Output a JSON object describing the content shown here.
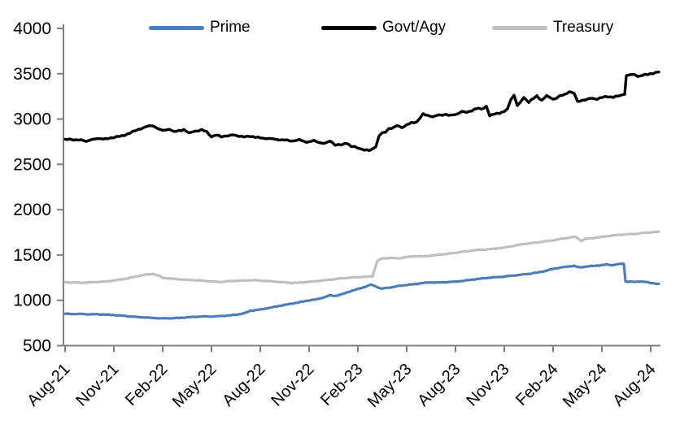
{
  "chart_data": {
    "type": "line",
    "title": "",
    "xlabel": "",
    "ylabel": "",
    "grid": false,
    "legend_position": "top",
    "axis_color": "#808080",
    "text_color": "#000000",
    "ylim": [
      500,
      4000
    ],
    "y_ticks": [
      500,
      1000,
      1500,
      2000,
      2500,
      3000,
      3500,
      4000
    ],
    "x_unit": "months since Aug-2021",
    "x_tick_months": [
      0,
      3,
      6,
      9,
      12,
      15,
      18,
      21,
      24,
      27,
      30,
      33,
      36
    ],
    "x_tick_labels": [
      "Aug-21",
      "Nov-21",
      "Feb-22",
      "May-22",
      "Aug-22",
      "Nov-22",
      "Feb-23",
      "May-23",
      "Aug-23",
      "Nov-23",
      "Feb-24",
      "May-24",
      "Aug-24"
    ],
    "series": [
      {
        "name": "Prime",
        "color": "#4a7ebb",
        "points": [
          [
            0,
            852
          ],
          [
            0.5,
            848
          ],
          [
            1,
            850
          ],
          [
            1.5,
            845
          ],
          [
            2,
            846
          ],
          [
            2.5,
            842
          ],
          [
            3,
            838
          ],
          [
            3.5,
            830
          ],
          [
            4,
            822
          ],
          [
            4.5,
            815
          ],
          [
            5,
            810
          ],
          [
            5.5,
            804
          ],
          [
            6,
            800
          ],
          [
            6.5,
            802
          ],
          [
            7,
            806
          ],
          [
            7.5,
            812
          ],
          [
            8,
            818
          ],
          [
            8.5,
            822
          ],
          [
            9,
            821
          ],
          [
            9.5,
            825
          ],
          [
            10,
            832
          ],
          [
            10.5,
            840
          ],
          [
            11,
            856
          ],
          [
            11.4,
            885
          ],
          [
            12,
            898
          ],
          [
            12.5,
            915
          ],
          [
            13,
            932
          ],
          [
            13.5,
            950
          ],
          [
            14,
            965
          ],
          [
            14.5,
            982
          ],
          [
            15,
            1000
          ],
          [
            15.5,
            1012
          ],
          [
            16,
            1038
          ],
          [
            16.3,
            1055
          ],
          [
            16.6,
            1048
          ],
          [
            17,
            1065
          ],
          [
            17.5,
            1098
          ],
          [
            18,
            1125
          ],
          [
            18.5,
            1152
          ],
          [
            18.8,
            1172
          ],
          [
            19.2,
            1148
          ],
          [
            19.4,
            1128
          ],
          [
            19.7,
            1135
          ],
          [
            20,
            1142
          ],
          [
            20.5,
            1158
          ],
          [
            21,
            1170
          ],
          [
            21.5,
            1178
          ],
          [
            22,
            1192
          ],
          [
            22.5,
            1198
          ],
          [
            23,
            1196
          ],
          [
            23.5,
            1202
          ],
          [
            24,
            1205
          ],
          [
            24.5,
            1215
          ],
          [
            25,
            1228
          ],
          [
            25.5,
            1238
          ],
          [
            26,
            1248
          ],
          [
            26.5,
            1255
          ],
          [
            27,
            1262
          ],
          [
            27.5,
            1272
          ],
          [
            28,
            1282
          ],
          [
            28.5,
            1292
          ],
          [
            29,
            1305
          ],
          [
            29.5,
            1322
          ],
          [
            30,
            1348
          ],
          [
            30.5,
            1362
          ],
          [
            31,
            1375
          ],
          [
            31.3,
            1380
          ],
          [
            31.6,
            1362
          ],
          [
            32,
            1372
          ],
          [
            32.5,
            1380
          ],
          [
            33,
            1388
          ],
          [
            33.3,
            1395
          ],
          [
            33.6,
            1388
          ],
          [
            34,
            1398
          ],
          [
            34.2,
            1405
          ],
          [
            34.35,
            1402
          ],
          [
            34.45,
            1208
          ],
          [
            34.8,
            1205
          ],
          [
            35,
            1202
          ],
          [
            35.3,
            1208
          ],
          [
            35.6,
            1205
          ],
          [
            36,
            1192
          ],
          [
            36.3,
            1185
          ],
          [
            36.5,
            1182
          ]
        ]
      },
      {
        "name": "Govt/Agy",
        "color": "#000000",
        "points": [
          [
            0,
            2770
          ],
          [
            0.3,
            2782
          ],
          [
            0.7,
            2765
          ],
          [
            1,
            2770
          ],
          [
            1.3,
            2758
          ],
          [
            1.7,
            2772
          ],
          [
            2,
            2788
          ],
          [
            2.5,
            2778
          ],
          [
            3,
            2800
          ],
          [
            3.5,
            2812
          ],
          [
            4,
            2848
          ],
          [
            4.5,
            2885
          ],
          [
            5,
            2915
          ],
          [
            5.4,
            2930
          ],
          [
            5.7,
            2895
          ],
          [
            6,
            2870
          ],
          [
            6.4,
            2892
          ],
          [
            6.7,
            2858
          ],
          [
            7,
            2872
          ],
          [
            7.3,
            2885
          ],
          [
            7.6,
            2845
          ],
          [
            8,
            2868
          ],
          [
            8.4,
            2878
          ],
          [
            8.7,
            2862
          ],
          [
            9,
            2805
          ],
          [
            9.3,
            2822
          ],
          [
            9.6,
            2808
          ],
          [
            10,
            2815
          ],
          [
            10.4,
            2825
          ],
          [
            10.7,
            2812
          ],
          [
            11,
            2802
          ],
          [
            11.4,
            2812
          ],
          [
            11.7,
            2798
          ],
          [
            12,
            2792
          ],
          [
            12.5,
            2785
          ],
          [
            13,
            2775
          ],
          [
            13.5,
            2768
          ],
          [
            14,
            2758
          ],
          [
            14.4,
            2772
          ],
          [
            14.7,
            2752
          ],
          [
            15,
            2748
          ],
          [
            15.3,
            2762
          ],
          [
            15.7,
            2738
          ],
          [
            16,
            2732
          ],
          [
            16.3,
            2758
          ],
          [
            16.6,
            2718
          ],
          [
            17,
            2712
          ],
          [
            17.3,
            2738
          ],
          [
            17.6,
            2698
          ],
          [
            18,
            2682
          ],
          [
            18.4,
            2660
          ],
          [
            18.7,
            2652
          ],
          [
            18.9,
            2668
          ],
          [
            19.1,
            2700
          ],
          [
            19.3,
            2812
          ],
          [
            19.5,
            2845
          ],
          [
            19.7,
            2858
          ],
          [
            19.9,
            2895
          ],
          [
            20.2,
            2905
          ],
          [
            20.4,
            2928
          ],
          [
            20.7,
            2908
          ],
          [
            21,
            2935
          ],
          [
            21.3,
            2958
          ],
          [
            21.6,
            2968
          ],
          [
            22,
            3052
          ],
          [
            22.3,
            3040
          ],
          [
            22.6,
            3028
          ],
          [
            23,
            3042
          ],
          [
            23.4,
            3052
          ],
          [
            23.7,
            3038
          ],
          [
            24,
            3052
          ],
          [
            24.4,
            3082
          ],
          [
            24.7,
            3072
          ],
          [
            25,
            3095
          ],
          [
            25.3,
            3118
          ],
          [
            25.6,
            3108
          ],
          [
            25.9,
            3142
          ],
          [
            26.1,
            3035
          ],
          [
            26.4,
            3055
          ],
          [
            26.7,
            3068
          ],
          [
            27,
            3082
          ],
          [
            27.2,
            3108
          ],
          [
            27.4,
            3218
          ],
          [
            27.6,
            3262
          ],
          [
            27.8,
            3152
          ],
          [
            28,
            3182
          ],
          [
            28.2,
            3238
          ],
          [
            28.5,
            3188
          ],
          [
            28.8,
            3228
          ],
          [
            29,
            3252
          ],
          [
            29.3,
            3208
          ],
          [
            29.6,
            3258
          ],
          [
            30,
            3218
          ],
          [
            30.4,
            3252
          ],
          [
            30.7,
            3268
          ],
          [
            31,
            3305
          ],
          [
            31.3,
            3282
          ],
          [
            31.5,
            3192
          ],
          [
            31.8,
            3208
          ],
          [
            32,
            3215
          ],
          [
            32.4,
            3228
          ],
          [
            32.7,
            3222
          ],
          [
            33,
            3238
          ],
          [
            33.4,
            3248
          ],
          [
            33.7,
            3242
          ],
          [
            34,
            3252
          ],
          [
            34.2,
            3262
          ],
          [
            34.4,
            3272
          ],
          [
            34.5,
            3478
          ],
          [
            34.8,
            3490
          ],
          [
            35,
            3492
          ],
          [
            35.2,
            3472
          ],
          [
            35.5,
            3482
          ],
          [
            35.8,
            3492
          ],
          [
            36,
            3502
          ],
          [
            36.3,
            3510
          ],
          [
            36.5,
            3520
          ]
        ]
      },
      {
        "name": "Treasury",
        "color": "#bfbfbf",
        "points": [
          [
            0,
            1200
          ],
          [
            0.5,
            1196
          ],
          [
            1,
            1194
          ],
          [
            1.5,
            1198
          ],
          [
            2,
            1202
          ],
          [
            2.5,
            1208
          ],
          [
            3,
            1218
          ],
          [
            3.5,
            1232
          ],
          [
            4,
            1248
          ],
          [
            4.5,
            1268
          ],
          [
            5,
            1285
          ],
          [
            5.4,
            1292
          ],
          [
            5.8,
            1268
          ],
          [
            6,
            1248
          ],
          [
            6.5,
            1240
          ],
          [
            7,
            1232
          ],
          [
            7.5,
            1226
          ],
          [
            8,
            1222
          ],
          [
            8.5,
            1215
          ],
          [
            9,
            1208
          ],
          [
            9.5,
            1202
          ],
          [
            10,
            1210
          ],
          [
            10.5,
            1215
          ],
          [
            11,
            1218
          ],
          [
            11.5,
            1222
          ],
          [
            12,
            1218
          ],
          [
            12.5,
            1212
          ],
          [
            13,
            1205
          ],
          [
            13.5,
            1198
          ],
          [
            14,
            1192
          ],
          [
            14.5,
            1196
          ],
          [
            15,
            1205
          ],
          [
            15.5,
            1212
          ],
          [
            16,
            1222
          ],
          [
            16.5,
            1232
          ],
          [
            17,
            1242
          ],
          [
            17.5,
            1250
          ],
          [
            18,
            1256
          ],
          [
            18.5,
            1260
          ],
          [
            18.9,
            1262
          ],
          [
            19.2,
            1438
          ],
          [
            19.5,
            1462
          ],
          [
            20,
            1468
          ],
          [
            20.5,
            1462
          ],
          [
            21,
            1478
          ],
          [
            21.5,
            1488
          ],
          [
            22,
            1485
          ],
          [
            22.5,
            1492
          ],
          [
            23,
            1505
          ],
          [
            23.5,
            1512
          ],
          [
            24,
            1525
          ],
          [
            24.5,
            1538
          ],
          [
            25,
            1548
          ],
          [
            25.5,
            1558
          ],
          [
            26,
            1562
          ],
          [
            26.5,
            1572
          ],
          [
            27,
            1582
          ],
          [
            27.5,
            1598
          ],
          [
            28,
            1615
          ],
          [
            28.5,
            1628
          ],
          [
            29,
            1638
          ],
          [
            29.5,
            1650
          ],
          [
            30,
            1662
          ],
          [
            30.5,
            1678
          ],
          [
            31,
            1692
          ],
          [
            31.4,
            1700
          ],
          [
            31.7,
            1658
          ],
          [
            32,
            1678
          ],
          [
            32.5,
            1688
          ],
          [
            33,
            1700
          ],
          [
            33.5,
            1712
          ],
          [
            34,
            1722
          ],
          [
            34.5,
            1728
          ],
          [
            35,
            1732
          ],
          [
            35.5,
            1742
          ],
          [
            36,
            1750
          ],
          [
            36.5,
            1758
          ]
        ]
      }
    ],
    "legend": [
      "Prime",
      "Govt/Agy",
      "Treasury"
    ]
  }
}
